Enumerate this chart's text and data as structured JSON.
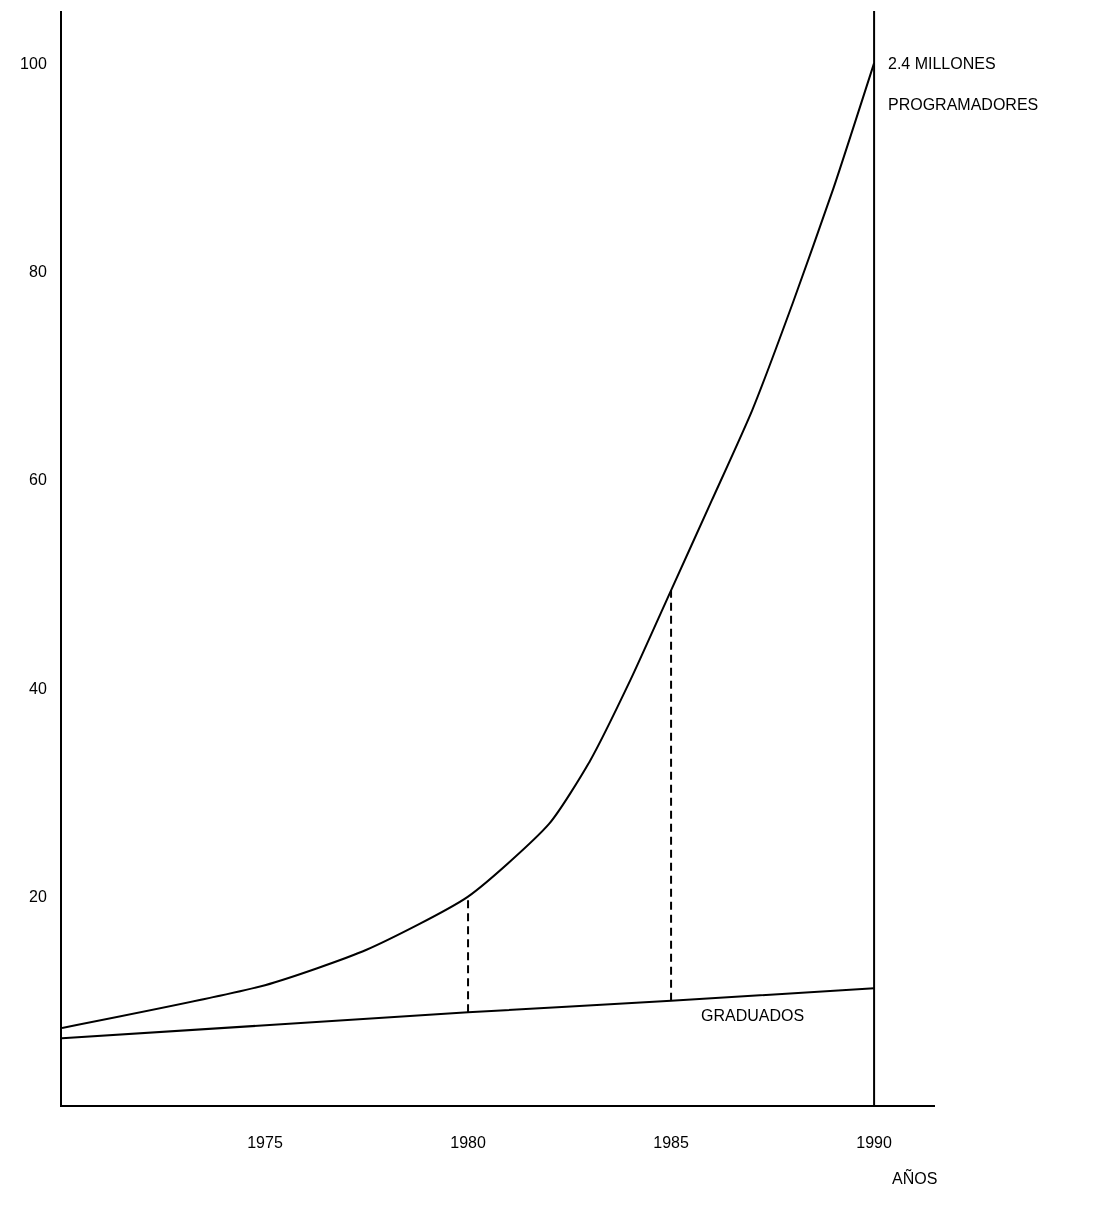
{
  "chart_data": {
    "type": "line",
    "xlabel": "AÑOS",
    "x": [
      1970,
      1975,
      1977.5,
      1980,
      1982,
      1983,
      1984,
      1985,
      1986,
      1987,
      1988,
      1989,
      1990
    ],
    "series": [
      {
        "name": "PROGRAMADORES",
        "color": "#000000",
        "values": [
          7.4,
          11.5,
          14.9,
          20,
          27,
          33,
          40.8,
          49.4,
          58,
          66.7,
          77,
          88,
          100
        ]
      },
      {
        "name": "GRADUADOS",
        "color": "#000000",
        "x": [
          1970,
          1980,
          1985,
          1990
        ],
        "values": [
          6.4,
          8.9,
          10,
          11.2
        ]
      },
      {
        "color": "#000000",
        "x": [
          1980,
          1980
        ],
        "values": [
          8.9,
          20
        ],
        "line_style": "dashed"
      },
      {
        "color": "#000000",
        "x": [
          1985,
          1985
        ],
        "values": [
          10,
          49.4
        ],
        "line_style": "dashed"
      }
    ],
    "ref_lines": [
      {
        "axis": "x",
        "value": 1990,
        "color": "#000000"
      }
    ],
    "annotations": [
      {
        "text": "2.4 MILLONES",
        "x": 1990,
        "y": 100
      }
    ],
    "xlim": [
      1970,
      1991.5
    ],
    "xticks": [
      1975,
      1980,
      1985,
      1990
    ],
    "ylim": [
      0,
      105
    ],
    "yticks": [
      20,
      40,
      60,
      80,
      100
    ],
    "grid": false,
    "legend": false,
    "marker": "none",
    "line_style": "solid"
  }
}
